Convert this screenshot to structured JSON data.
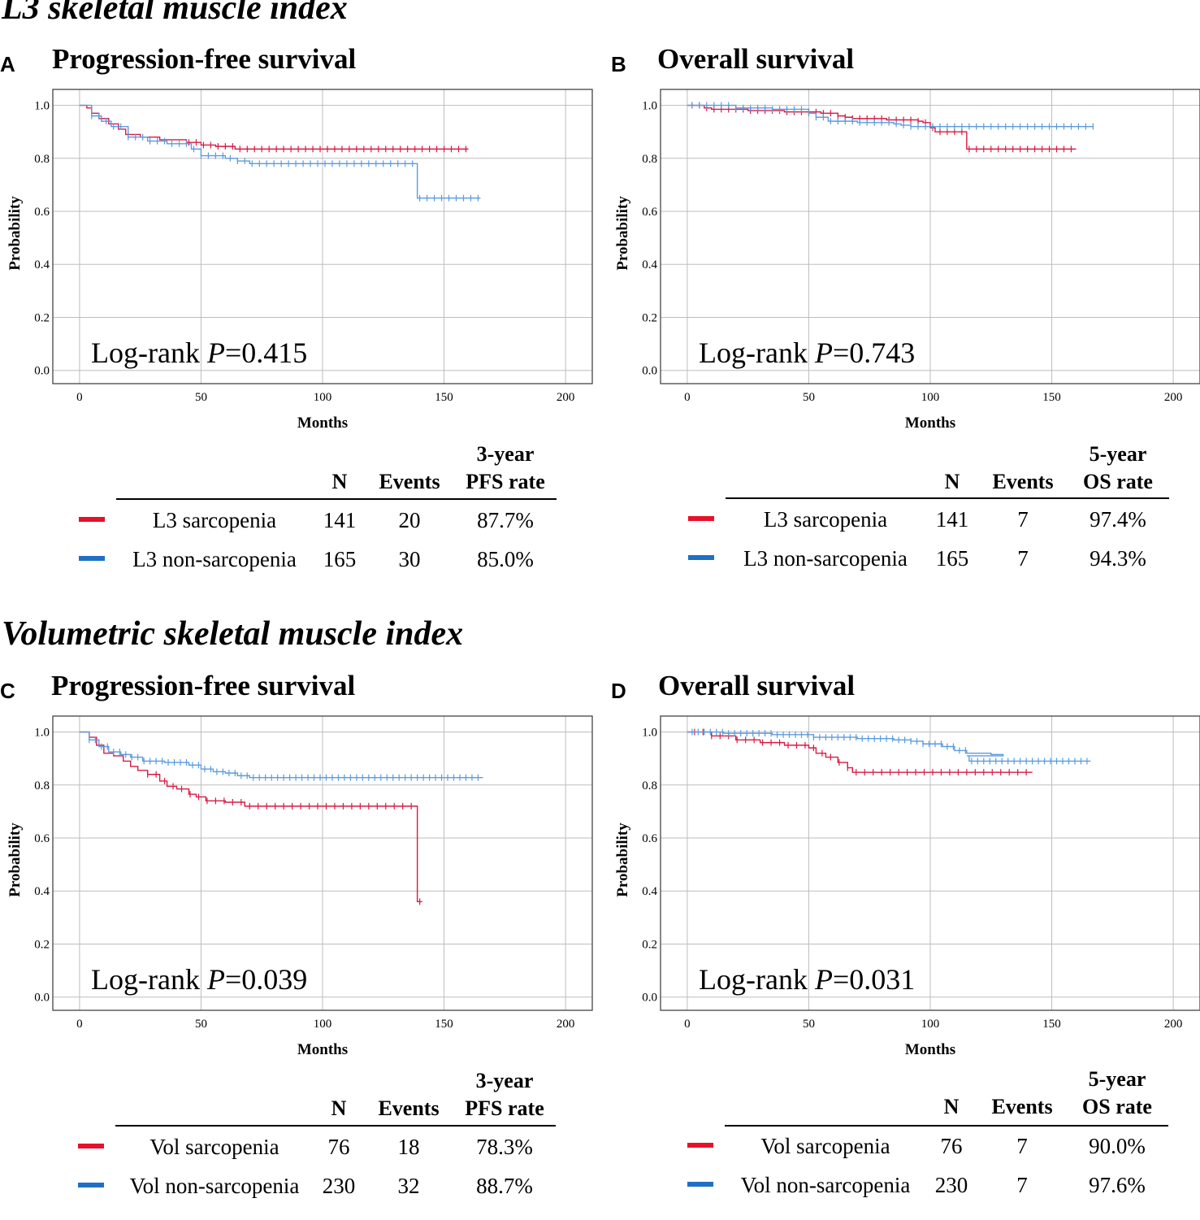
{
  "section_l3": "L3 skeletal muscle index",
  "section_vol": "Volumetric skeletal muscle index",
  "colors": {
    "red": "#e8102a",
    "blue": "#1f6fc5",
    "red_line": "#d81b43",
    "blue_line": "#5b9be0"
  },
  "panels": {
    "A": {
      "letter": "A",
      "title": "Progression-free survival",
      "logrank_prefix": "Log-rank ",
      "p_symbol": "P",
      "p_value": "=0.415",
      "hdr_n": "N",
      "hdr_events": "Events",
      "hdr_rate_1": "3-year",
      "hdr_rate_2": "PFS rate",
      "rows": [
        {
          "label": "L3 sarcopenia",
          "n": "141",
          "events": "20",
          "rate": "87.7%"
        },
        {
          "label": "L3 non-sarcopenia",
          "n": "165",
          "events": "30",
          "rate": "85.0%"
        }
      ]
    },
    "B": {
      "letter": "B",
      "title": "Overall survival",
      "logrank_prefix": "Log-rank ",
      "p_symbol": "P",
      "p_value": "=0.743",
      "hdr_n": "N",
      "hdr_events": "Events",
      "hdr_rate_1": "5-year",
      "hdr_rate_2": "OS rate",
      "rows": [
        {
          "label": "L3 sarcopenia",
          "n": "141",
          "events": "7",
          "rate": "97.4%"
        },
        {
          "label": "L3 non-sarcopenia",
          "n": "165",
          "events": "7",
          "rate": "94.3%"
        }
      ]
    },
    "C": {
      "letter": "C",
      "title": "Progression-free survival",
      "logrank_prefix": "Log-rank ",
      "p_symbol": "P",
      "p_value": "=0.039",
      "hdr_n": "N",
      "hdr_events": "Events",
      "hdr_rate_1": "3-year",
      "hdr_rate_2": "PFS rate",
      "rows": [
        {
          "label": "Vol sarcopenia",
          "n": "76",
          "events": "18",
          "rate": "78.3%"
        },
        {
          "label": "Vol non-sarcopenia",
          "n": "230",
          "events": "32",
          "rate": "88.7%"
        }
      ]
    },
    "D": {
      "letter": "D",
      "title": "Overall survival",
      "logrank_prefix": "Log-rank ",
      "p_symbol": "P",
      "p_value": "=0.031",
      "hdr_n": "N",
      "hdr_events": "Events",
      "hdr_rate_1": "5-year",
      "hdr_rate_2": "OS rate",
      "rows": [
        {
          "label": "Vol sarcopenia",
          "n": "76",
          "events": "7",
          "rate": "90.0%"
        },
        {
          "label": "Vol non-sarcopenia",
          "n": "230",
          "events": "7",
          "rate": "97.6%"
        }
      ]
    }
  },
  "chart_data": [
    {
      "id": "A",
      "type": "line",
      "title": "Progression-free survival",
      "xlabel": "Months",
      "ylabel": "Probability",
      "xlim": [
        -11,
        211
      ],
      "ylim": [
        -0.05,
        1.06
      ],
      "xticks": [
        0,
        50,
        100,
        150,
        200
      ],
      "xtick_labels": [
        "0",
        "50",
        "100",
        "150",
        "200"
      ],
      "yticks": [
        0,
        0.2,
        0.4,
        0.6,
        0.8,
        1.0
      ],
      "ytick_labels": [
        "0.0",
        "0.2",
        "0.4",
        "0.6",
        "0.8",
        "1.0"
      ],
      "series": [
        {
          "name": "L3 sarcopenia",
          "color": "red",
          "steps": [
            [
              0,
              1.0
            ],
            [
              3,
              0.99
            ],
            [
              5,
              0.97
            ],
            [
              8,
              0.95
            ],
            [
              12,
              0.93
            ],
            [
              16,
              0.91
            ],
            [
              19,
              0.89
            ],
            [
              25,
              0.88
            ],
            [
              33,
              0.87
            ],
            [
              44,
              0.86
            ],
            [
              50,
              0.85
            ],
            [
              56,
              0.845
            ],
            [
              64,
              0.835
            ],
            [
              160,
              0.835
            ]
          ],
          "censor_range": [
            45,
            160
          ],
          "censor_step": 3
        },
        {
          "name": "L3 non-sarcopenia",
          "color": "blue",
          "steps": [
            [
              0,
              1.0
            ],
            [
              5,
              0.96
            ],
            [
              9,
              0.94
            ],
            [
              13,
              0.92
            ],
            [
              20,
              0.88
            ],
            [
              28,
              0.865
            ],
            [
              36,
              0.855
            ],
            [
              46,
              0.835
            ],
            [
              50,
              0.81
            ],
            [
              60,
              0.8
            ],
            [
              65,
              0.79
            ],
            [
              70,
              0.78
            ],
            [
              139,
              0.78
            ],
            [
              139,
              0.65
            ],
            [
              165,
              0.65
            ]
          ],
          "censor_range": [
            5,
            165
          ],
          "censor_step": 3
        }
      ]
    },
    {
      "id": "B",
      "type": "line",
      "title": "Overall survival",
      "xlabel": "Months",
      "ylabel": "Probability",
      "xlim": [
        -11,
        211
      ],
      "ylim": [
        -0.05,
        1.06
      ],
      "xticks": [
        0,
        50,
        100,
        150,
        200
      ],
      "xtick_labels": [
        "0",
        "50",
        "100",
        "150",
        "200"
      ],
      "yticks": [
        0,
        0.2,
        0.4,
        0.6,
        0.8,
        1.0
      ],
      "ytick_labels": [
        "0.0",
        "0.2",
        "0.4",
        "0.6",
        "0.8",
        "1.0"
      ],
      "series": [
        {
          "name": "L3 sarcopenia",
          "color": "red",
          "steps": [
            [
              0,
              1.0
            ],
            [
              7,
              0.99
            ],
            [
              10,
              0.985
            ],
            [
              25,
              0.98
            ],
            [
              40,
              0.975
            ],
            [
              55,
              0.97
            ],
            [
              62,
              0.96
            ],
            [
              65,
              0.955
            ],
            [
              68,
              0.95
            ],
            [
              82,
              0.945
            ],
            [
              95,
              0.94
            ],
            [
              97,
              0.935
            ],
            [
              100,
              0.915
            ],
            [
              102,
              0.9
            ],
            [
              115,
              0.9
            ],
            [
              115,
              0.835
            ],
            [
              160,
              0.835
            ]
          ],
          "censor_range": [
            2,
            160
          ],
          "censor_step": 3
        },
        {
          "name": "L3 non-sarcopenia",
          "color": "blue",
          "steps": [
            [
              0,
              1.0
            ],
            [
              20,
              0.99
            ],
            [
              35,
              0.985
            ],
            [
              50,
              0.97
            ],
            [
              53,
              0.955
            ],
            [
              58,
              0.94
            ],
            [
              70,
              0.935
            ],
            [
              85,
              0.93
            ],
            [
              88,
              0.925
            ],
            [
              92,
              0.92
            ],
            [
              167,
              0.92
            ]
          ],
          "censor_range": [
            2,
            167
          ],
          "censor_step": 3
        }
      ]
    },
    {
      "id": "C",
      "type": "line",
      "title": "Progression-free survival",
      "xlabel": "Months",
      "ylabel": "Probability",
      "xlim": [
        -11,
        211
      ],
      "ylim": [
        -0.05,
        1.06
      ],
      "xticks": [
        0,
        50,
        100,
        150,
        200
      ],
      "xtick_labels": [
        "0",
        "50",
        "100",
        "150",
        "200"
      ],
      "yticks": [
        0,
        0.2,
        0.4,
        0.6,
        0.8,
        1.0
      ],
      "ytick_labels": [
        "0.0",
        "0.2",
        "0.4",
        "0.6",
        "0.8",
        "1.0"
      ],
      "series": [
        {
          "name": "Vol sarcopenia",
          "color": "red",
          "steps": [
            [
              0,
              1.0
            ],
            [
              4,
              0.98
            ],
            [
              7,
              0.95
            ],
            [
              10,
              0.92
            ],
            [
              14,
              0.91
            ],
            [
              18,
              0.89
            ],
            [
              21,
              0.87
            ],
            [
              24,
              0.855
            ],
            [
              28,
              0.84
            ],
            [
              33,
              0.815
            ],
            [
              36,
              0.795
            ],
            [
              40,
              0.785
            ],
            [
              45,
              0.765
            ],
            [
              48,
              0.755
            ],
            [
              52,
              0.74
            ],
            [
              60,
              0.735
            ],
            [
              68,
              0.72
            ],
            [
              139,
              0.72
            ],
            [
              139,
              0.36
            ],
            [
              141,
              0.36
            ]
          ],
          "censor_range": [
            28,
            141
          ],
          "censor_step": 3.5
        },
        {
          "name": "Vol non-sarcopenia",
          "color": "blue",
          "steps": [
            [
              0,
              1.0
            ],
            [
              4,
              0.97
            ],
            [
              8,
              0.945
            ],
            [
              12,
              0.925
            ],
            [
              17,
              0.915
            ],
            [
              21,
              0.905
            ],
            [
              26,
              0.89
            ],
            [
              35,
              0.885
            ],
            [
              45,
              0.875
            ],
            [
              50,
              0.86
            ],
            [
              55,
              0.85
            ],
            [
              60,
              0.845
            ],
            [
              65,
              0.835
            ],
            [
              70,
              0.828
            ],
            [
              166,
              0.828
            ]
          ],
          "censor_range": [
            4,
            166
          ],
          "censor_step": 2.5
        }
      ]
    },
    {
      "id": "D",
      "type": "line",
      "title": "Overall survival",
      "xlabel": "Months",
      "ylabel": "Probability",
      "xlim": [
        -11,
        211
      ],
      "ylim": [
        -0.05,
        1.06
      ],
      "xticks": [
        0,
        50,
        100,
        150,
        200
      ],
      "xtick_labels": [
        "0",
        "50",
        "100",
        "150",
        "200"
      ],
      "yticks": [
        0,
        0.2,
        0.4,
        0.6,
        0.8,
        1.0
      ],
      "ytick_labels": [
        "0.0",
        "0.2",
        "0.4",
        "0.6",
        "0.8",
        "1.0"
      ],
      "series": [
        {
          "name": "Vol sarcopenia",
          "color": "red",
          "steps": [
            [
              0,
              1.0
            ],
            [
              10,
              0.985
            ],
            [
              20,
              0.97
            ],
            [
              30,
              0.96
            ],
            [
              40,
              0.95
            ],
            [
              50,
              0.94
            ],
            [
              53,
              0.92
            ],
            [
              57,
              0.905
            ],
            [
              62,
              0.885
            ],
            [
              66,
              0.865
            ],
            [
              68,
              0.848
            ],
            [
              142,
              0.848
            ]
          ],
          "censor_range": [
            3,
            142
          ],
          "censor_step": 3.5
        },
        {
          "name": "Vol non-sarcopenia",
          "color": "blue",
          "steps": [
            [
              0,
              1.0
            ],
            [
              15,
              0.995
            ],
            [
              35,
              0.99
            ],
            [
              52,
              0.98
            ],
            [
              70,
              0.975
            ],
            [
              85,
              0.97
            ],
            [
              92,
              0.965
            ],
            [
              97,
              0.955
            ],
            [
              105,
              0.945
            ],
            [
              110,
              0.93
            ],
            [
              115,
              0.92
            ],
            [
              125,
              0.915
            ],
            [
              130,
              0.91
            ],
            [
              115,
              0.91
            ],
            [
              116,
              0.89
            ],
            [
              166,
              0.89
            ]
          ],
          "censor_range": [
            2,
            166
          ],
          "censor_step": 2.5
        }
      ]
    }
  ]
}
